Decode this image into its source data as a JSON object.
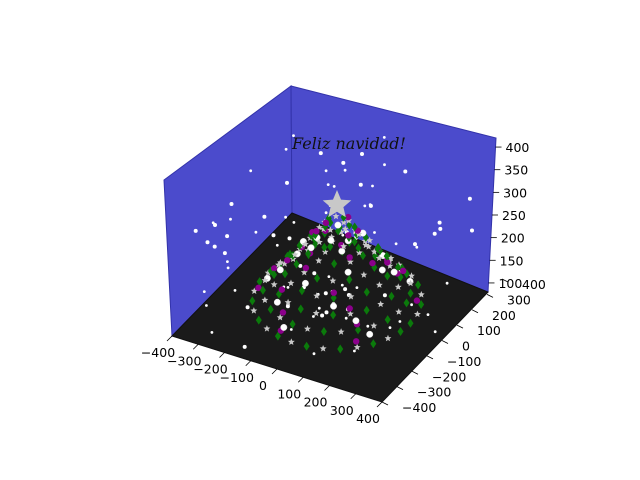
{
  "chart_data": {
    "type": "scatter",
    "projection": "3d",
    "annotations": [
      {
        "text": "Feliz navidad!",
        "x": 0,
        "y": 0,
        "z": 420
      }
    ],
    "xticks": [
      "−400",
      "−300",
      "−200",
      "−100",
      "0",
      "100",
      "200",
      "300",
      "400"
    ],
    "yticks": [
      "−400",
      "−300",
      "−200",
      "−100",
      "0",
      "100",
      "200",
      "300",
      "400"
    ],
    "zticks": [
      "100",
      "150",
      "200",
      "250",
      "300",
      "350",
      "400"
    ],
    "xlim": [
      -400,
      400
    ],
    "ylim": [
      -400,
      400
    ],
    "zlim": [
      80,
      420
    ],
    "tree": {
      "levels": [
        {
          "z": 100,
          "radius": 280
        },
        {
          "z": 130,
          "radius": 245
        },
        {
          "z": 160,
          "radius": 210
        },
        {
          "z": 190,
          "radius": 175
        },
        {
          "z": 220,
          "radius": 140
        },
        {
          "z": 250,
          "radius": 105
        },
        {
          "z": 280,
          "radius": 72
        },
        {
          "z": 310,
          "radius": 42
        }
      ],
      "top_star": {
        "x": 0,
        "y": 0,
        "z": 350
      }
    },
    "series": [
      {
        "marker": "diamond",
        "color": "#0b7a0b"
      },
      {
        "marker": "star",
        "color": "#c8c8c8"
      },
      {
        "marker": "circle",
        "color": "#8b008b"
      },
      {
        "marker": "circle",
        "color": "#ffffff"
      }
    ],
    "colors": {
      "back_wall": "#4b4bcc",
      "floor": "#1a1a1a",
      "snow": "#ffffff"
    }
  }
}
